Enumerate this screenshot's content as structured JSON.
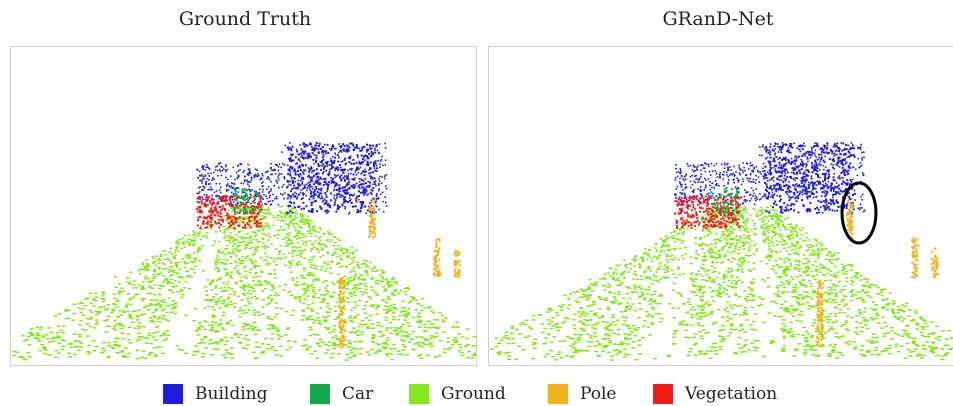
{
  "panels": [
    {
      "title": "Ground Truth"
    },
    {
      "title": "GRanD-Net"
    }
  ],
  "legend": [
    {
      "label": "Building",
      "color": "#1d1de0"
    },
    {
      "label": "Car",
      "color": "#14a84a"
    },
    {
      "label": "Ground",
      "color": "#84e61c"
    },
    {
      "label": "Pole",
      "color": "#f2b21c"
    },
    {
      "label": "Vegetation",
      "color": "#ee1c1c"
    }
  ],
  "highlight": {
    "shape": "ellipse",
    "panel": "GRanD-Net",
    "stroke": "#000000"
  }
}
